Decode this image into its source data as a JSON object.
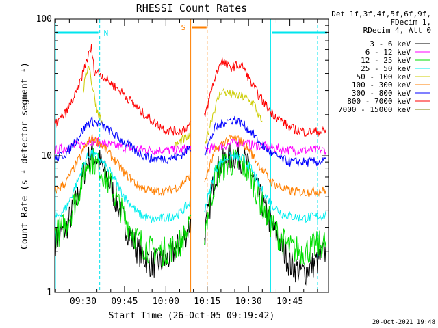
{
  "chart_data": {
    "type": "line",
    "title": "RHESSI Count Rates",
    "xlabel": "Start Time (26-Oct-05 09:19:42)",
    "ylabel": "Count Rate (s⁻¹ detector segment⁻¹)",
    "yscale": "log",
    "ylim": [
      1,
      100
    ],
    "xlim": [
      "09:19:42",
      "10:59:00"
    ],
    "ytick_labels": [
      "1",
      "10",
      "100"
    ],
    "xtick_labels": [
      "09:30",
      "09:45",
      "10:00",
      "10:15",
      "10:30",
      "10:45"
    ],
    "legend_placement": "right",
    "info_lines": [
      "Det 1f,3f,4f,5f,6f,9f,",
      "FDecim 1,",
      "RDecim 4, Att 0"
    ],
    "timestamp": "20-Oct-2021 19:48",
    "data_gap": [
      "10:09",
      "10:14"
    ],
    "night_intervals": [
      {
        "start": "09:19:42",
        "end": "09:36",
        "label": "N",
        "color": "#00e5ee"
      },
      {
        "start": "10:38",
        "end": "10:59",
        "label": "",
        "color": "#00e5ee"
      }
    ],
    "saa_interval": {
      "start": "10:09",
      "end": "10:15",
      "label": "S",
      "color": "#ff7f00"
    },
    "series": [
      {
        "name": "3 - 6 keV",
        "color": "#000000",
        "x": [
          "09:20",
          "09:24",
          "09:28",
          "09:31",
          "09:33",
          "09:36",
          "09:40",
          "09:45",
          "09:50",
          "09:55",
          "10:00",
          "10:05",
          "10:09",
          "10:14",
          "10:18",
          "10:22",
          "10:25",
          "10:28",
          "10:31",
          "10:34",
          "10:38",
          "10:42",
          "10:45",
          "10:50",
          "10:55",
          "10:58"
        ],
        "values": [
          2.4,
          3.0,
          5.0,
          8.5,
          10.5,
          9.0,
          6.0,
          3.2,
          2.0,
          1.6,
          1.7,
          2.2,
          3.2,
          2.6,
          7.5,
          9.5,
          10.0,
          9.5,
          7.5,
          5.0,
          3.2,
          2.2,
          1.6,
          1.4,
          1.7,
          2.0
        ]
      },
      {
        "name": "6 - 12 keV",
        "color": "#ff00ff",
        "x": [
          "09:20",
          "09:24",
          "09:28",
          "09:31",
          "09:33",
          "09:36",
          "09:40",
          "09:45",
          "09:50",
          "09:55",
          "10:00",
          "10:05",
          "10:09",
          "10:14",
          "10:18",
          "10:22",
          "10:25",
          "10:28",
          "10:31",
          "10:34",
          "10:38",
          "10:42",
          "10:45",
          "10:50",
          "10:55",
          "10:58"
        ],
        "values": [
          11,
          11.5,
          12,
          12.5,
          13,
          12.5,
          12,
          11.5,
          11.2,
          11,
          11,
          11,
          11.5,
          11,
          11.5,
          12,
          12.5,
          12.5,
          12,
          11.8,
          11.5,
          11.2,
          11,
          11,
          11,
          11
        ]
      },
      {
        "name": "12 - 25 keV",
        "color": "#00dd00",
        "x": [
          "09:20",
          "09:24",
          "09:28",
          "09:31",
          "09:33",
          "09:36",
          "09:40",
          "09:45",
          "09:50",
          "09:55",
          "10:00",
          "10:05",
          "10:09",
          "10:14",
          "10:18",
          "10:22",
          "10:25",
          "10:28",
          "10:31",
          "10:34",
          "10:38",
          "10:42",
          "10:45",
          "10:50",
          "10:55",
          "10:58"
        ],
        "values": [
          2.6,
          3.2,
          5.2,
          8.5,
          9.5,
          8.2,
          6.0,
          3.5,
          2.4,
          2.0,
          2.0,
          2.3,
          3.0,
          2.8,
          7.0,
          8.8,
          9.0,
          8.5,
          7.0,
          4.8,
          3.2,
          2.4,
          2.1,
          2.0,
          2.2,
          2.3
        ]
      },
      {
        "name": "25 - 50 keV",
        "color": "#00eeee",
        "x": [
          "09:20",
          "09:24",
          "09:28",
          "09:31",
          "09:33",
          "09:36",
          "09:40",
          "09:45",
          "09:50",
          "09:55",
          "10:00",
          "10:05",
          "10:09",
          "10:14",
          "10:18",
          "10:22",
          "10:25",
          "10:28",
          "10:31",
          "10:34",
          "10:38",
          "10:42",
          "10:45",
          "10:50",
          "10:55",
          "10:58"
        ],
        "values": [
          3.5,
          4.2,
          6.5,
          9.5,
          10.5,
          9.5,
          7.5,
          5.0,
          3.8,
          3.4,
          3.5,
          3.8,
          4.6,
          4.0,
          8.0,
          9.8,
          10.0,
          9.5,
          8.0,
          6.0,
          4.5,
          3.8,
          3.6,
          3.5,
          3.6,
          3.7
        ]
      },
      {
        "name": "50 - 100 keV",
        "color": "#cccc00",
        "x": [
          "09:30",
          "09:32",
          "09:33",
          "09:35",
          "09:37",
          "10:03",
          "10:06",
          "10:09",
          "10:14",
          "10:17",
          "10:20",
          "10:24",
          "10:28",
          "10:32",
          "10:35"
        ],
        "values": [
          30,
          48,
          35,
          22,
          17,
          11.5,
          13,
          14,
          12,
          20,
          30,
          28,
          27,
          24,
          17
        ]
      },
      {
        "name": "100 - 300 keV",
        "color": "#ff7f00",
        "x": [
          "09:20",
          "09:24",
          "09:28",
          "09:31",
          "09:33",
          "09:36",
          "09:40",
          "09:45",
          "09:50",
          "09:55",
          "10:00",
          "10:05",
          "10:09",
          "10:14",
          "10:18",
          "10:22",
          "10:25",
          "10:28",
          "10:31",
          "10:34",
          "10:38",
          "10:42",
          "10:45",
          "10:50",
          "10:55",
          "10:58"
        ],
        "values": [
          5.5,
          6.5,
          9.0,
          12.0,
          13.5,
          12.5,
          10.0,
          7.5,
          6.0,
          5.5,
          5.5,
          6.0,
          7.2,
          6.5,
          11.0,
          13.0,
          13.5,
          12.5,
          10.5,
          8.5,
          6.5,
          5.8,
          5.5,
          5.4,
          5.5,
          5.6
        ]
      },
      {
        "name": "300 - 800 keV",
        "color": "#0000ff",
        "x": [
          "09:20",
          "09:24",
          "09:28",
          "09:31",
          "09:33",
          "09:36",
          "09:40",
          "09:45",
          "09:50",
          "09:55",
          "10:00",
          "10:05",
          "10:09",
          "10:14",
          "10:18",
          "10:22",
          "10:25",
          "10:28",
          "10:31",
          "10:34",
          "10:38",
          "10:42",
          "10:45",
          "10:50",
          "10:55",
          "10:58"
        ],
        "values": [
          9.5,
          10.5,
          13.5,
          16.5,
          18.0,
          17.0,
          15.0,
          12.5,
          10.5,
          9.5,
          9.5,
          10.0,
          11.5,
          10.5,
          16.0,
          18.0,
          18.5,
          17.0,
          15.0,
          12.5,
          10.5,
          9.5,
          9.0,
          9.0,
          9.0,
          9.2
        ]
      },
      {
        "name": "800 - 7000 keV",
        "color": "#ff0000",
        "x": [
          "09:20",
          "09:24",
          "09:28",
          "09:31",
          "09:33",
          "09:34",
          "09:36",
          "09:40",
          "09:45",
          "09:50",
          "09:55",
          "10:00",
          "10:05",
          "10:09",
          "10:14",
          "10:17",
          "10:20",
          "10:23",
          "10:26",
          "10:28",
          "10:31",
          "10:34",
          "10:38",
          "10:42",
          "10:45",
          "10:50",
          "10:55",
          "10:58"
        ],
        "values": [
          17,
          21,
          30,
          48,
          62,
          42,
          40,
          34,
          28,
          22,
          18,
          15.5,
          15,
          17,
          19,
          33,
          50,
          44,
          46,
          45,
          34,
          27,
          21,
          18,
          16,
          15,
          15,
          15
        ]
      },
      {
        "name": "7000 - 15000 keV",
        "color": "#808000",
        "x": [],
        "values": []
      }
    ]
  }
}
